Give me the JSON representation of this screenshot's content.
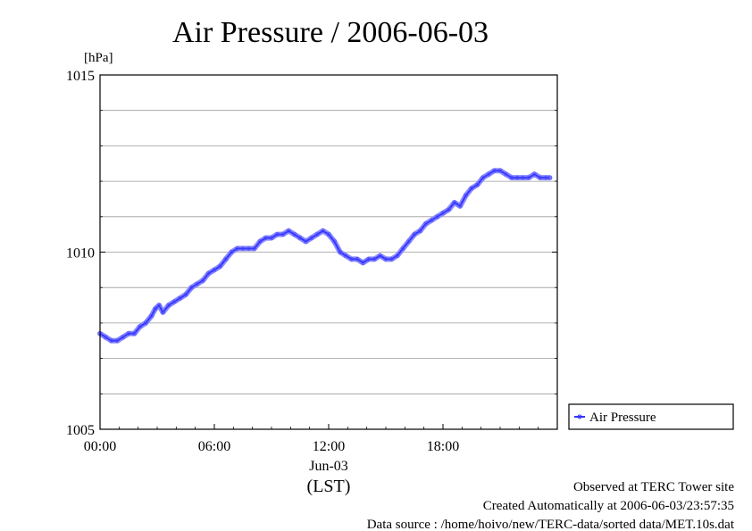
{
  "chart_data": {
    "type": "line",
    "title": "Air Pressure / 2006-06-03",
    "ylabel": "[hPa]",
    "xlabel": "(LST)",
    "date_label": "Jun-03",
    "ylim": [
      1005,
      1015
    ],
    "xlim_hours": [
      0,
      24
    ],
    "y_ticks": [
      "1015",
      "1010",
      "1005"
    ],
    "y_tick_values": [
      1015,
      1010,
      1005
    ],
    "y_grid_values": [
      1006,
      1007,
      1008,
      1009,
      1010,
      1011,
      1012,
      1013,
      1014
    ],
    "x_ticks": [
      "00:00",
      "06:00",
      "12:00",
      "18:00"
    ],
    "x_tick_hours": [
      0,
      6,
      12,
      18
    ],
    "grid": true,
    "legend_position": "right",
    "series": [
      {
        "name": "Air Pressure",
        "color": "#3333ff",
        "x_hours": [
          0.0,
          0.3,
          0.6,
          0.9,
          1.2,
          1.5,
          1.8,
          2.1,
          2.4,
          2.7,
          2.9,
          3.1,
          3.3,
          3.6,
          3.9,
          4.2,
          4.5,
          4.8,
          5.1,
          5.4,
          5.7,
          6.0,
          6.3,
          6.6,
          6.9,
          7.2,
          7.5,
          7.8,
          8.1,
          8.4,
          8.7,
          9.0,
          9.3,
          9.6,
          9.9,
          10.2,
          10.5,
          10.8,
          11.1,
          11.4,
          11.7,
          12.0,
          12.3,
          12.6,
          12.9,
          13.2,
          13.5,
          13.8,
          14.1,
          14.4,
          14.7,
          15.0,
          15.3,
          15.6,
          15.9,
          16.2,
          16.5,
          16.8,
          17.1,
          17.4,
          17.7,
          18.0,
          18.3,
          18.6,
          18.9,
          19.2,
          19.5,
          19.8,
          20.1,
          20.4,
          20.7,
          21.0,
          21.3,
          21.6,
          21.9,
          22.2,
          22.5,
          22.8,
          23.1,
          23.4,
          23.6
        ],
        "values": [
          1007.7,
          1007.6,
          1007.5,
          1007.5,
          1007.6,
          1007.7,
          1007.7,
          1007.9,
          1008.0,
          1008.2,
          1008.4,
          1008.5,
          1008.3,
          1008.5,
          1008.6,
          1008.7,
          1008.8,
          1009.0,
          1009.1,
          1009.2,
          1009.4,
          1009.5,
          1009.6,
          1009.8,
          1010.0,
          1010.1,
          1010.1,
          1010.1,
          1010.1,
          1010.3,
          1010.4,
          1010.4,
          1010.5,
          1010.5,
          1010.6,
          1010.5,
          1010.4,
          1010.3,
          1010.4,
          1010.5,
          1010.6,
          1010.5,
          1010.3,
          1010.0,
          1009.9,
          1009.8,
          1009.8,
          1009.7,
          1009.8,
          1009.8,
          1009.9,
          1009.8,
          1009.8,
          1009.9,
          1010.1,
          1010.3,
          1010.5,
          1010.6,
          1010.8,
          1010.9,
          1011.0,
          1011.1,
          1011.2,
          1011.4,
          1011.3,
          1011.6,
          1011.8,
          1011.9,
          1012.1,
          1012.2,
          1012.3,
          1012.3,
          1012.2,
          1012.1,
          1012.1,
          1012.1,
          1012.1,
          1012.2,
          1012.1,
          1012.1,
          1012.1
        ]
      }
    ]
  },
  "footer": {
    "line1": "Observed at TERC Tower site",
    "line2": "Created Automatically at 2006-06-03/23:57:35",
    "line3": "Data source : /home/hoivo/new/TERC-data/sorted  data/MET.10s.dat"
  }
}
